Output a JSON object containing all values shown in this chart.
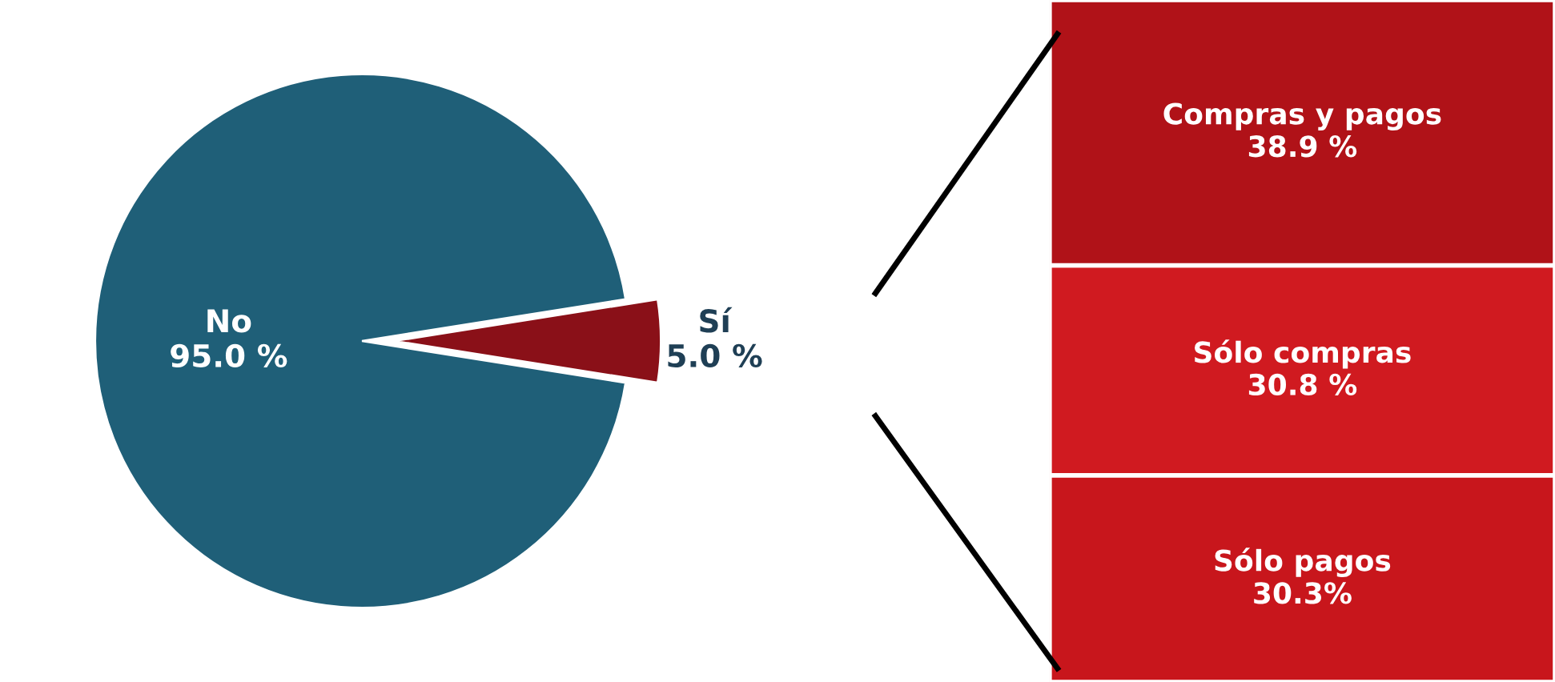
{
  "chart_data": [
    {
      "type": "pie",
      "categories": [
        "No",
        "Sí"
      ],
      "values": [
        95.0,
        5.0
      ],
      "colors": [
        "#1f5f78",
        "#8a1018"
      ],
      "value_labels": [
        "95.0 %",
        "5.0 %"
      ]
    },
    {
      "type": "bar",
      "stacked": true,
      "categories": [
        null
      ],
      "series": [
        {
          "name": "Sólo pagos",
          "color": "#c8161c",
          "values": [
            30.3
          ],
          "value_labels": [
            "30.3%"
          ]
        },
        {
          "name": "Sólo compras",
          "color": "#d01a20",
          "values": [
            30.8
          ],
          "value_labels": [
            "30.8 %"
          ]
        },
        {
          "name": "Compras y pagos",
          "color": "#b01218",
          "values": [
            38.9
          ],
          "value_labels": [
            "38.9 %"
          ]
        }
      ]
    }
  ]
}
